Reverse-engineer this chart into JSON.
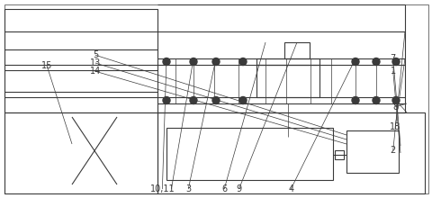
{
  "bg_color": "#ffffff",
  "line_color": "#3a3a3a",
  "lw": 0.8,
  "tlw": 0.5,
  "labels": {
    "10_11": [
      0.375,
      0.955,
      "10,11"
    ],
    "3": [
      0.435,
      0.955,
      "3"
    ],
    "6": [
      0.518,
      0.955,
      "6"
    ],
    "9": [
      0.552,
      0.955,
      "9"
    ],
    "4": [
      0.672,
      0.955,
      "4"
    ],
    "2": [
      0.908,
      0.76,
      "2"
    ],
    "18": [
      0.913,
      0.64,
      "18"
    ],
    "8": [
      0.913,
      0.54,
      "8"
    ],
    "15": [
      0.108,
      0.33,
      "15"
    ],
    "14": [
      0.22,
      0.36,
      "14"
    ],
    "13": [
      0.22,
      0.318,
      "13"
    ],
    "5": [
      0.22,
      0.278,
      "5"
    ],
    "1": [
      0.908,
      0.36,
      "1"
    ],
    "7": [
      0.908,
      0.295,
      "7"
    ]
  }
}
